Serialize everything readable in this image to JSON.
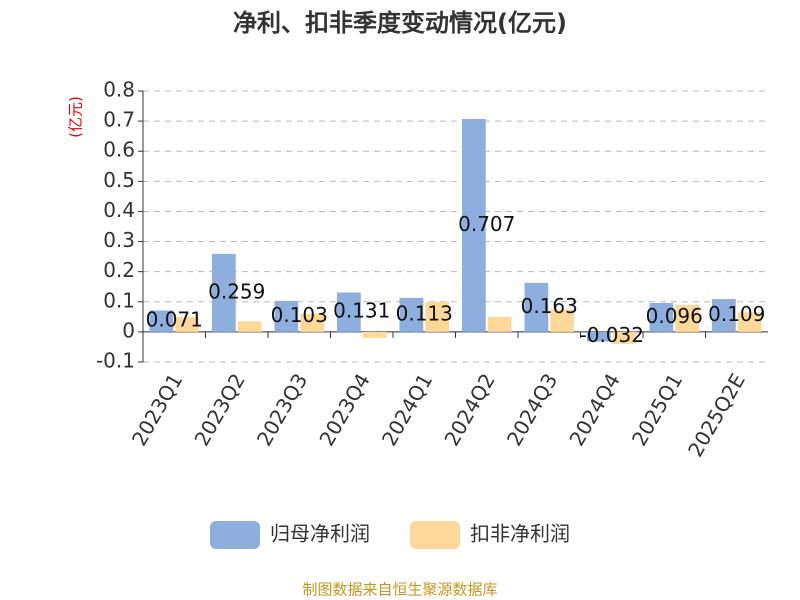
{
  "chart_data": {
    "type": "bar",
    "title": "净利、扣非季度变动情况(亿元)",
    "y_label": "(亿元)",
    "source": "制图数据来自恒生聚源数据库",
    "categories": [
      "2023Q1",
      "2023Q2",
      "2023Q3",
      "2023Q4",
      "2024Q1",
      "2024Q2",
      "2024Q3",
      "2024Q4",
      "2025Q1",
      "2025Q2E"
    ],
    "series": [
      {
        "name": "归母净利润",
        "color": "#8eaedd",
        "values": [
          0.071,
          0.259,
          0.103,
          0.131,
          0.113,
          0.707,
          0.163,
          -0.032,
          0.096,
          0.109
        ]
      },
      {
        "name": "扣非净利润",
        "color": "#fed899",
        "values": [
          0.05,
          0.035,
          0.06,
          -0.02,
          0.1,
          0.05,
          0.075,
          -0.04,
          0.09,
          0.065
        ]
      }
    ],
    "ylim": [
      -0.1,
      0.8
    ],
    "yticks": [
      -0.1,
      0,
      0.1,
      0.2,
      0.3,
      0.4,
      0.5,
      0.6,
      0.7,
      0.8
    ],
    "grid": true
  }
}
